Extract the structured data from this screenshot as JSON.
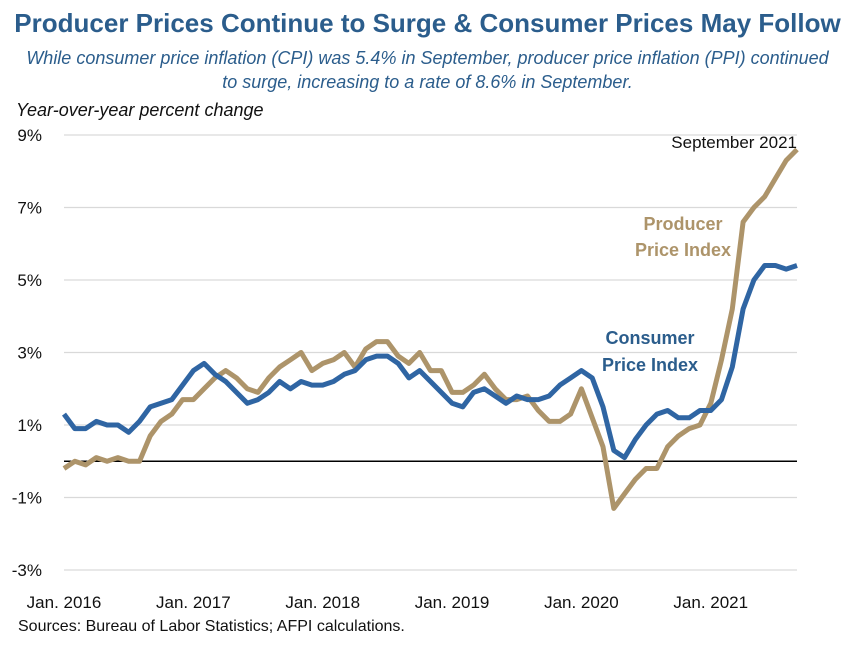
{
  "header": {
    "title": "Producer Prices Continue to Surge & Consumer Prices May Follow",
    "subtitle": "While consumer price inflation (CPI) was 5.4% in September, producer price inflation (PPI) continued to surge, increasing to a rate of 8.6% in September."
  },
  "footer": {
    "source": "Sources: Bureau of Labor Statistics; AFPI calculations."
  },
  "colors": {
    "cpi": "#2f65a3",
    "ppi": "#ad946a",
    "grid": "#d9d9d9",
    "zero": "#000000"
  },
  "chart_data": {
    "type": "line",
    "ylabel": "Year-over-year percent change",
    "ylim": [
      -3,
      9
    ],
    "yticks": [
      9,
      7,
      5,
      3,
      1,
      -1,
      -3
    ],
    "ytick_labels": [
      "9%",
      "7%",
      "5%",
      "3%",
      "1%",
      "-1%",
      "-3%"
    ],
    "xtick_labels": [
      "Jan. 2016",
      "Jan. 2017",
      "Jan. 2018",
      "Jan. 2019",
      "Jan. 2020",
      "Jan. 2021"
    ],
    "x_start": "2016-01",
    "x_end": "2021-09",
    "grid": true,
    "annotations": {
      "point": "September 2021"
    },
    "series": [
      {
        "name": "Consumer Price Index",
        "label_lines": [
          "Consumer",
          "Price Index"
        ],
        "values": [
          1.3,
          0.9,
          0.9,
          1.1,
          1.0,
          1.0,
          0.8,
          1.1,
          1.5,
          1.6,
          1.7,
          2.1,
          2.5,
          2.7,
          2.4,
          2.2,
          1.9,
          1.6,
          1.7,
          1.9,
          2.2,
          2.0,
          2.2,
          2.1,
          2.1,
          2.2,
          2.4,
          2.5,
          2.8,
          2.9,
          2.9,
          2.7,
          2.3,
          2.5,
          2.2,
          1.9,
          1.6,
          1.5,
          1.9,
          2.0,
          1.8,
          1.6,
          1.8,
          1.7,
          1.7,
          1.8,
          2.1,
          2.3,
          2.5,
          2.3,
          1.5,
          0.3,
          0.1,
          0.6,
          1.0,
          1.3,
          1.4,
          1.2,
          1.2,
          1.4,
          1.4,
          1.7,
          2.6,
          4.2,
          5.0,
          5.4,
          5.4,
          5.3,
          5.4
        ]
      },
      {
        "name": "Producer Price Index",
        "label_lines": [
          "Producer",
          "Price Index"
        ],
        "values": [
          -0.2,
          0.0,
          -0.1,
          0.1,
          0.0,
          0.1,
          0.0,
          0.0,
          0.7,
          1.1,
          1.3,
          1.7,
          1.7,
          2.0,
          2.3,
          2.5,
          2.3,
          2.0,
          1.9,
          2.3,
          2.6,
          2.8,
          3.0,
          2.5,
          2.7,
          2.8,
          3.0,
          2.6,
          3.1,
          3.3,
          3.3,
          2.9,
          2.7,
          3.0,
          2.5,
          2.5,
          1.9,
          1.9,
          2.1,
          2.4,
          2.0,
          1.7,
          1.7,
          1.8,
          1.4,
          1.1,
          1.1,
          1.3,
          2.0,
          1.2,
          0.4,
          -1.3,
          -0.9,
          -0.5,
          -0.2,
          -0.2,
          0.4,
          0.7,
          0.9,
          1.0,
          1.6,
          2.8,
          4.2,
          6.6,
          7.0,
          7.3,
          7.8,
          8.3,
          8.6
        ]
      }
    ]
  }
}
